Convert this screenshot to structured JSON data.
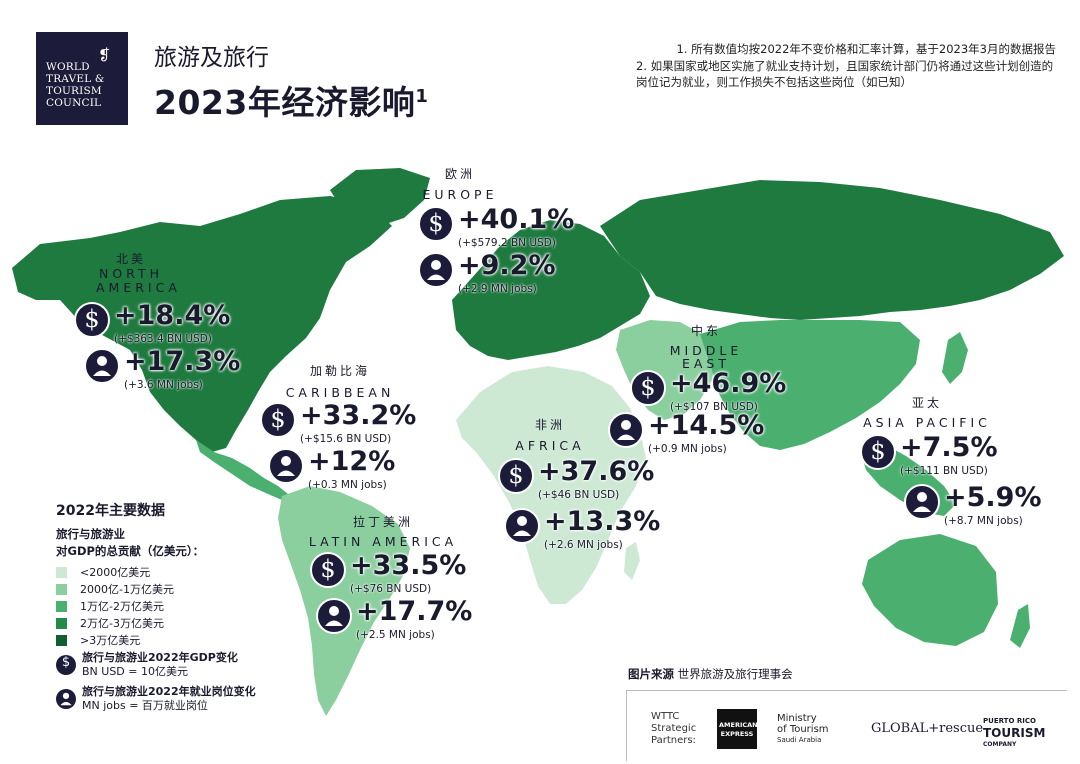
{
  "logo": {
    "lines": [
      "WORLD",
      "TRAVEL &",
      "TOURISM",
      "COUNCIL"
    ]
  },
  "title": {
    "line1": "旅游及旅行",
    "line2": "2023年经济影响",
    "sup": "1"
  },
  "footnotes": {
    "n1": "1. 所有数值均按2022年不变价格和汇率计算，基于2023年3月的数据报告",
    "n2": "2. 如果国家或地区实施了就业支持计划，且国家统计部门仍将通过这些计划创造的岗位记为就业，则工作损失不包括这些岗位（如已知）"
  },
  "regions": {
    "north_america": {
      "cn": "北美",
      "en": "NORTH AMERICA",
      "gdp": "+18.4%",
      "gdp_sub": "(+$363.4 BN USD)",
      "jobs": "+17.3%",
      "jobs_sub": "(+3.6 MN jobs)"
    },
    "caribbean": {
      "cn": "加勒比海",
      "en": "CARIBBEAN",
      "gdp": "+33.2%",
      "gdp_sub": "(+$15.6 BN USD)",
      "jobs": "+12%",
      "jobs_sub": "(+0.3 MN jobs)"
    },
    "latin_america": {
      "cn": "拉丁美洲",
      "en": "LATIN AMERICA",
      "gdp": "+33.5%",
      "gdp_sub": "(+$76 BN USD)",
      "jobs": "+17.7%",
      "jobs_sub": "(+2.5 MN jobs)"
    },
    "europe": {
      "cn": "欧洲",
      "en": "EUROPE",
      "gdp": "+40.1%",
      "gdp_sub": "(+$579.2 BN USD)",
      "jobs": "+9.2%",
      "jobs_sub": "(+2.9 MN jobs)"
    },
    "africa": {
      "cn": "非洲",
      "en": "AFRICA",
      "gdp": "+37.6%",
      "gdp_sub": "(+$46 BN USD)",
      "jobs": "+13.3%",
      "jobs_sub": "(+2.6 MN jobs)"
    },
    "middle_east": {
      "cn": "中东",
      "en_line1": "MIDDLE",
      "en_line2": "EAST",
      "gdp": "+46.9%",
      "gdp_sub": "(+$107 BN USD)",
      "jobs": "+14.5%",
      "jobs_sub": "(+0.9 MN jobs)"
    },
    "asia_pacific": {
      "cn": "亚太",
      "en": "ASIA PACIFIC",
      "gdp": "+7.5%",
      "gdp_sub": "(+$111 BN USD)",
      "jobs": "+5.9%",
      "jobs_sub": "(+8.7 MN jobs)"
    }
  },
  "legend": {
    "title": "2022年主要数据",
    "subtitle1": "旅行与旅游业",
    "subtitle2": "对GDP的总贡献（亿美元）：",
    "items": [
      {
        "label": "<2000亿美元",
        "color": "#cde9d4"
      },
      {
        "label": "2000亿-1万亿美元",
        "color": "#8ccf9f"
      },
      {
        "label": "1万亿-2万亿美元",
        "color": "#4bb06f"
      },
      {
        "label": "2万亿-3万亿美元",
        "color": "#238a48"
      },
      {
        "label": ">3万亿美元",
        "color": "#125e32"
      }
    ],
    "gdp_key_line1": "旅行与旅游业2022年GDP变化",
    "gdp_key_line2": "BN USD = 10亿美元",
    "jobs_key_line1": "旅行与旅游业2022年就业岗位变化",
    "jobs_key_line2": "MN jobs = 百万就业岗位"
  },
  "source": {
    "label": "图片来源",
    "text": "世界旅游及旅行理事会"
  },
  "partners": {
    "label_lines": [
      "WTTC",
      "Strategic",
      "Partners:"
    ],
    "amex": "AMERICAN EXPRESS",
    "mot_lines": [
      "Ministry",
      "of Tourism",
      "Saudi Arabia"
    ],
    "global_rescue": "GLOBAL+rescue",
    "pr_lines": [
      "PUERTO RICO",
      "TOURISM",
      "COMPANY"
    ]
  },
  "icons": {
    "gdp": "dollar-icon",
    "jobs": "person-icon"
  },
  "colors": {
    "navy": "#1c1c3a"
  }
}
